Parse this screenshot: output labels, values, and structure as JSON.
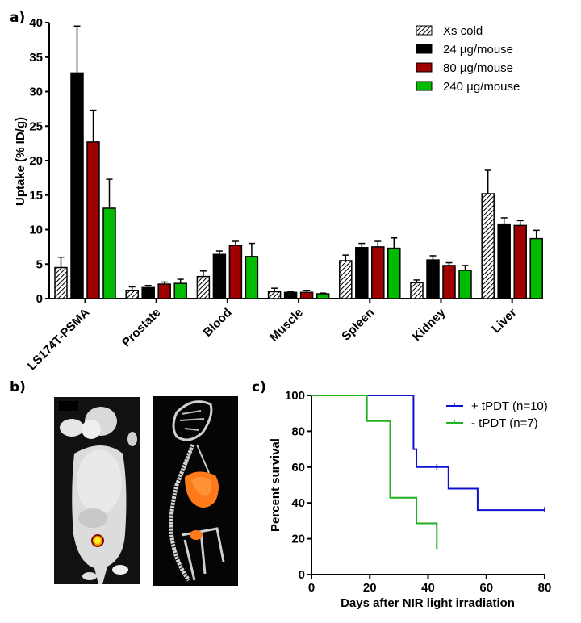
{
  "panels": {
    "a": "a)",
    "b": "b)",
    "c": "c)"
  },
  "colors": {
    "xs_cold": "#ffffff",
    "dose24": "#000000",
    "dose80": "#a00000",
    "dose240": "#00bb00",
    "plus_tpdt": "#1010d0",
    "minus_tpdt": "#20b020"
  },
  "chart_data": [
    {
      "id": "a",
      "type": "bar",
      "title": "",
      "xlabel": "",
      "ylabel": "Uptake (% ID/g)",
      "ylim": [
        0,
        40
      ],
      "yticks": [
        0,
        5,
        10,
        15,
        20,
        25,
        30,
        35,
        40
      ],
      "categories": [
        "LS174T-PSMA",
        "Prostate",
        "Blood",
        "Muscle",
        "Spleen",
        "Kidney",
        "Liver"
      ],
      "legend_position": "top-right",
      "series": [
        {
          "name": "Xs cold",
          "pattern": "hatched",
          "values": [
            4.5,
            1.2,
            3.2,
            1.0,
            5.5,
            2.3,
            15.2
          ],
          "errors": [
            1.5,
            0.5,
            0.8,
            0.5,
            0.8,
            0.4,
            3.4
          ]
        },
        {
          "name": "24 µg/mouse",
          "values": [
            32.7,
            1.6,
            6.4,
            0.9,
            7.4,
            5.6,
            10.8
          ],
          "errors": [
            6.8,
            0.3,
            0.5,
            0.1,
            0.6,
            0.6,
            0.9
          ]
        },
        {
          "name": "80 µg/mouse",
          "values": [
            22.7,
            2.1,
            7.7,
            0.9,
            7.5,
            4.8,
            10.6
          ],
          "errors": [
            4.6,
            0.3,
            0.6,
            0.3,
            0.8,
            0.4,
            0.7
          ]
        },
        {
          "name": "240 µg/mouse",
          "values": [
            13.1,
            2.2,
            6.1,
            0.7,
            7.3,
            4.1,
            8.7
          ],
          "errors": [
            4.2,
            0.6,
            1.9,
            0.1,
            1.5,
            0.7,
            1.2
          ]
        }
      ]
    },
    {
      "id": "c",
      "type": "line",
      "subtype": "kaplan-meier",
      "title": "",
      "xlabel": "Days after NIR light irradiation",
      "ylabel": "Percent survival",
      "xlim": [
        0,
        80
      ],
      "ylim": [
        0,
        100
      ],
      "xticks": [
        0,
        20,
        40,
        60,
        80
      ],
      "yticks": [
        0,
        20,
        40,
        60,
        80,
        100
      ],
      "legend_position": "top-right",
      "series": [
        {
          "name": "+ tPDT (n=10)",
          "steps": [
            [
              0,
              100
            ],
            [
              35,
              100
            ],
            [
              35,
              70
            ],
            [
              36,
              70
            ],
            [
              36,
              60
            ],
            [
              47,
              60
            ],
            [
              47,
              48
            ],
            [
              57,
              48
            ],
            [
              57,
              36
            ],
            [
              80,
              36
            ]
          ],
          "censored": [
            [
              43,
              60
            ],
            [
              80,
              36
            ]
          ]
        },
        {
          "name": "- tPDT (n=7)",
          "steps": [
            [
              0,
              100
            ],
            [
              19,
              100
            ],
            [
              19,
              85.7
            ],
            [
              27,
              85.7
            ],
            [
              27,
              42.9
            ],
            [
              36,
              42.9
            ],
            [
              36,
              28.6
            ],
            [
              43,
              28.6
            ],
            [
              43,
              14.3
            ]
          ],
          "censored": []
        }
      ]
    }
  ],
  "images": {
    "left": "mouse-fluorescence-image",
    "right": "mouse-skeleton-3d-render"
  }
}
